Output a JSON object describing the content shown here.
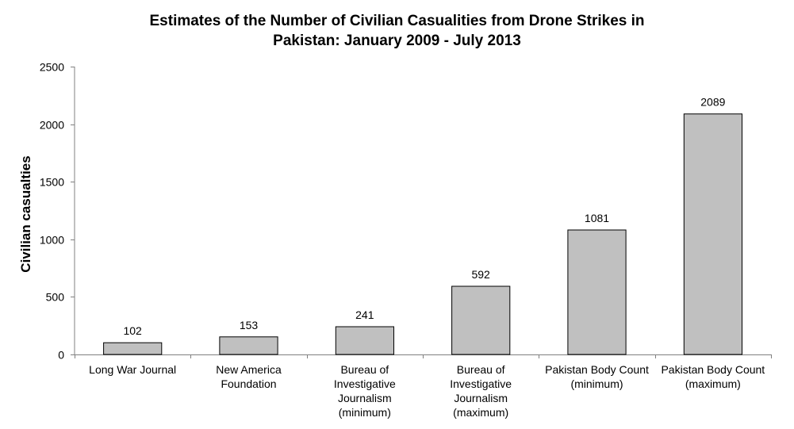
{
  "chart_data": {
    "type": "bar",
    "title": [
      "Estimates of the Number of Civilian Casualities from Drone Strikes in",
      "Pakistan: January 2009 - July 2013"
    ],
    "xlabel": "",
    "ylabel": "Civilian casualties",
    "ylim": [
      0,
      2500
    ],
    "yticks": [
      0,
      500,
      1000,
      1500,
      2000,
      2500
    ],
    "grid": false,
    "legend": "none",
    "categories": [
      [
        "Long War Journal"
      ],
      [
        "New America",
        "Foundation"
      ],
      [
        "Bureau of",
        "Investigative",
        "Journalism",
        "(minimum)"
      ],
      [
        "Bureau of",
        "Investigative",
        "Journalism",
        "(maximum)"
      ],
      [
        "Pakistan Body Count",
        "(minimum)"
      ],
      [
        "Pakistan Body Count",
        "(maximum)"
      ]
    ],
    "values": [
      102,
      153,
      241,
      592,
      1081,
      2089
    ],
    "data_labels": [
      "102",
      "153",
      "241",
      "592",
      "1081",
      "2089"
    ],
    "colors": {
      "bar_fill": "#c0c0c0",
      "bar_stroke": "#000000",
      "axis": "#808080"
    }
  }
}
